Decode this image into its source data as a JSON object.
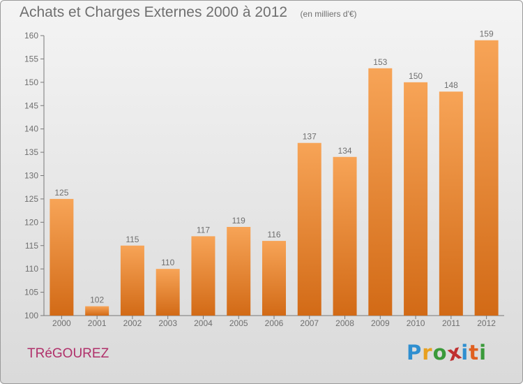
{
  "header": {
    "title": "Achats et Charges Externes 2000 à 2012",
    "subtitle": "(en milliers d'€)"
  },
  "footer": {
    "commune": "TRéGOUREZ",
    "logo": {
      "letters": [
        "P",
        "r",
        "o",
        "x",
        "i",
        "t",
        "i"
      ],
      "colors": [
        "#2f8fd0",
        "#e8a020",
        "#3a9a3a",
        "#c03030",
        "#2f8fd0",
        "#e06020",
        "#3a9a3a"
      ]
    }
  },
  "colors": {
    "bar_light": "#f7a457",
    "bar_dark": "#d26a16",
    "text": "#6f6f6f",
    "axis": "#777777"
  },
  "chart_data": {
    "type": "bar",
    "title": "Achats et Charges Externes 2000 à 2012",
    "subtitle": "(en milliers d'€)",
    "categories": [
      "2000",
      "2001",
      "2002",
      "2003",
      "2004",
      "2005",
      "2006",
      "2007",
      "2008",
      "2009",
      "2010",
      "2011",
      "2012"
    ],
    "values": [
      125,
      102,
      115,
      110,
      117,
      119,
      116,
      137,
      134,
      153,
      150,
      148,
      159
    ],
    "ylim": [
      100,
      160
    ],
    "yticks": [
      100,
      105,
      110,
      115,
      120,
      125,
      130,
      135,
      140,
      145,
      150,
      155,
      160
    ],
    "grid": false,
    "data_labels": true
  }
}
